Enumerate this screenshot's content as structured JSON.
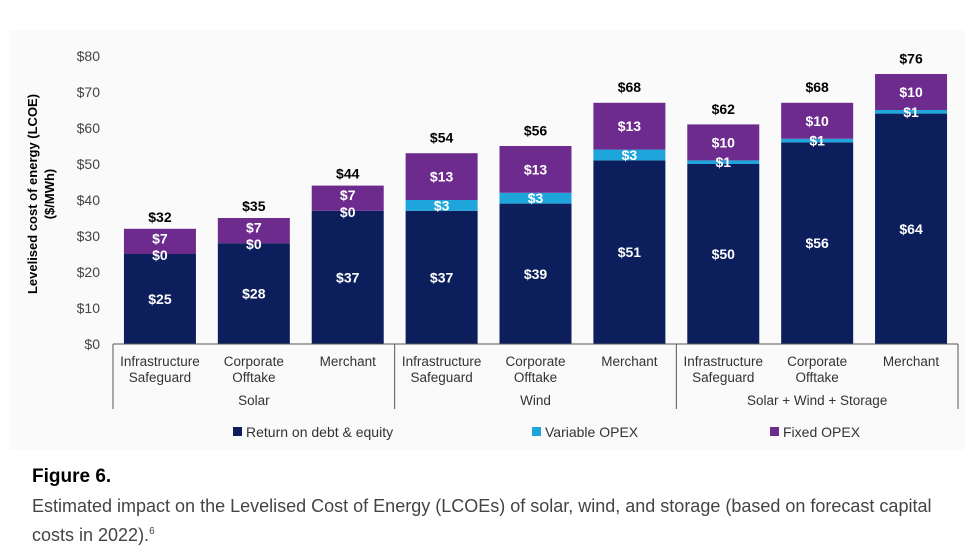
{
  "chart_data": {
    "type": "bar",
    "stacked": true,
    "ylabel": "Levelised cost of energy (LCOE)",
    "ylabel_unit": "($/MWh)",
    "ylim": [
      0,
      80
    ],
    "yticks": [
      "$0",
      "$10",
      "$20",
      "$30",
      "$40",
      "$50",
      "$60",
      "$70",
      "$80"
    ],
    "grid": false,
    "legend_position": "bottom",
    "categories": [
      [
        "Infrastructure",
        "Safeguard"
      ],
      [
        "Corporate",
        "Offtake"
      ],
      [
        "Merchant"
      ],
      [
        "Infrastructure",
        "Safeguard"
      ],
      [
        "Corporate",
        "Offtake"
      ],
      [
        "Merchant"
      ],
      [
        "Infrastructure",
        "Safeguard"
      ],
      [
        "Corporate",
        "Offtake"
      ],
      [
        "Merchant"
      ]
    ],
    "groups": [
      {
        "label": "Solar",
        "start": 0,
        "end": 2
      },
      {
        "label": "Wind",
        "start": 3,
        "end": 5
      },
      {
        "label": "Solar + Wind + Storage",
        "start": 6,
        "end": 8
      }
    ],
    "series": [
      {
        "name": "Return on debt & equity",
        "color": "#0c1f5c",
        "values": [
          25,
          28,
          37,
          37,
          39,
          51,
          50,
          56,
          64
        ],
        "labels": [
          "$25",
          "$28",
          "$37",
          "$37",
          "$39",
          "$51",
          "$50",
          "$56",
          "$64"
        ]
      },
      {
        "name": "Variable OPEX",
        "color": "#1ea5dc",
        "values": [
          0,
          0,
          0,
          3,
          3,
          3,
          1,
          1,
          1
        ],
        "labels": [
          "$0",
          "$0",
          "$0",
          "$3",
          "$3",
          "$3",
          "$1",
          "$1",
          "$1"
        ]
      },
      {
        "name": "Fixed OPEX",
        "color": "#6e2b8e",
        "values": [
          7,
          7,
          7,
          13,
          13,
          13,
          10,
          10,
          10
        ],
        "labels": [
          "$7",
          "$7",
          "$7",
          "$13",
          "$13",
          "$13",
          "$10",
          "$10",
          "$10"
        ]
      }
    ],
    "totals": [
      32,
      35,
      44,
      54,
      56,
      68,
      62,
      68,
      76
    ],
    "total_labels": [
      "$32",
      "$35",
      "$44",
      "$54",
      "$56",
      "$68",
      "$62",
      "$68",
      "$76"
    ]
  },
  "caption": {
    "label": "Figure 6.",
    "text": "Estimated impact on the Levelised Cost of Energy (LCOEs) of solar, wind, and storage (based on forecast capital costs in 2022).",
    "footnote": "6"
  }
}
